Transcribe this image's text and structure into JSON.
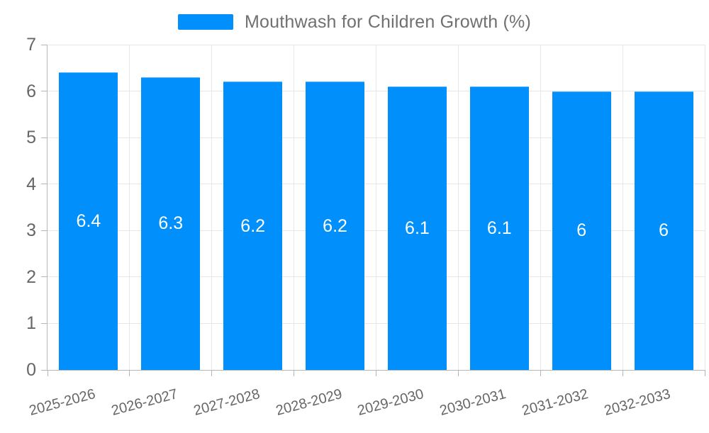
{
  "legend": {
    "label": "Mouthwash for Children Growth (%)",
    "swatch_color": "#008FFB"
  },
  "chart_data": {
    "type": "bar",
    "title": "Mouthwash for Children Growth (%)",
    "categories": [
      "2025-2026",
      "2026-2027",
      "2027-2028",
      "2028-2029",
      "2029-2030",
      "2030-2031",
      "2031-2032",
      "2032-2033"
    ],
    "series": [
      {
        "name": "Mouthwash for Children Growth (%)",
        "values": [
          6.4,
          6.3,
          6.2,
          6.2,
          6.1,
          6.1,
          6,
          6
        ]
      }
    ],
    "bar_labels": [
      "6.4",
      "6.3",
      "6.2",
      "6.2",
      "6.1",
      "6.1",
      "6",
      "6"
    ],
    "y_ticks": [
      "0",
      "1",
      "2",
      "3",
      "4",
      "5",
      "6",
      "7"
    ],
    "ylim": [
      0,
      7
    ],
    "xlabel": "",
    "ylabel": "",
    "grid": true,
    "legend_position": "top",
    "colors": {
      "bar": "#008FFB",
      "grid": "#e7e7e7",
      "axis": "#b6b6b6",
      "axis_label": "#666666",
      "legend_text": "#707073",
      "data_label": "#ffffff"
    }
  }
}
